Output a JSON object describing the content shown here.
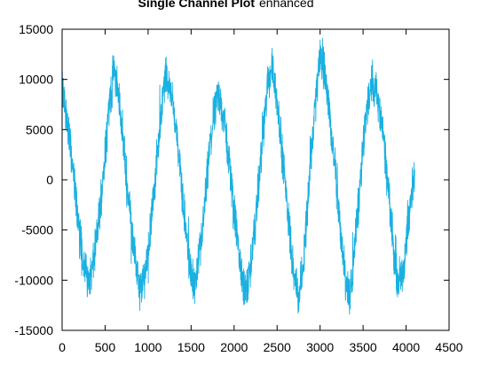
{
  "chart_data": {
    "type": "line",
    "title": "Single Channel Plot",
    "subtitle": "enhanced",
    "xlabel": "",
    "ylabel": "",
    "xlim": [
      0,
      4500
    ],
    "ylim": [
      -15000,
      15000
    ],
    "xticks": [
      0,
      500,
      1000,
      1500,
      2000,
      2500,
      3000,
      3500,
      4000,
      4500
    ],
    "yticks": [
      -15000,
      -10000,
      -5000,
      0,
      5000,
      10000,
      15000
    ],
    "grid": false,
    "legend": "none",
    "series": [
      {
        "color": "#1ab0e0",
        "x": [
          0,
          50,
          100,
          150,
          200,
          250,
          300,
          350,
          400,
          450,
          500,
          550,
          600,
          650,
          700,
          750,
          800,
          850,
          900,
          950,
          1000,
          1050,
          1100,
          1150,
          1200,
          1250,
          1300,
          1350,
          1400,
          1450,
          1500,
          1550,
          1600,
          1650,
          1700,
          1750,
          1800,
          1850,
          1900,
          1950,
          2000,
          2050,
          2100,
          2150,
          2200,
          2250,
          2300,
          2350,
          2400,
          2450,
          2500,
          2550,
          2600,
          2650,
          2700,
          2750,
          2800,
          2850,
          2900,
          2950,
          3000,
          3050,
          3100,
          3150,
          3200,
          3250,
          3300,
          3350,
          3400,
          3450,
          3500,
          3550,
          3600,
          3650,
          3700,
          3750,
          3800,
          3850,
          3900,
          3950,
          4000,
          4050,
          4100
        ],
        "y": [
          9000,
          6500,
          3000,
          -1000,
          -5000,
          -8000,
          -10000,
          -9000,
          -6000,
          -2000,
          3000,
          7500,
          11000,
          9000,
          5000,
          0,
          -4000,
          -8000,
          -11000,
          -10000,
          -7000,
          -3000,
          2000,
          6500,
          10500,
          9500,
          7000,
          3000,
          -1500,
          -6000,
          -9500,
          -10500,
          -7500,
          -3500,
          1500,
          5500,
          8500,
          7500,
          5000,
          1000,
          -3000,
          -7000,
          -10500,
          -11000,
          -8000,
          -4000,
          1000,
          5500,
          10500,
          11000,
          8000,
          3500,
          -1000,
          -5500,
          -9500,
          -12000,
          -8500,
          -3000,
          3000,
          8000,
          12500,
          11000,
          7500,
          3000,
          -1500,
          -6000,
          -10500,
          -11500,
          -7000,
          -2000,
          3000,
          7500,
          10000,
          9000,
          6500,
          3000,
          -2000,
          -6500,
          -10000,
          -9500,
          -6500,
          -2500,
          1000
        ]
      }
    ]
  }
}
